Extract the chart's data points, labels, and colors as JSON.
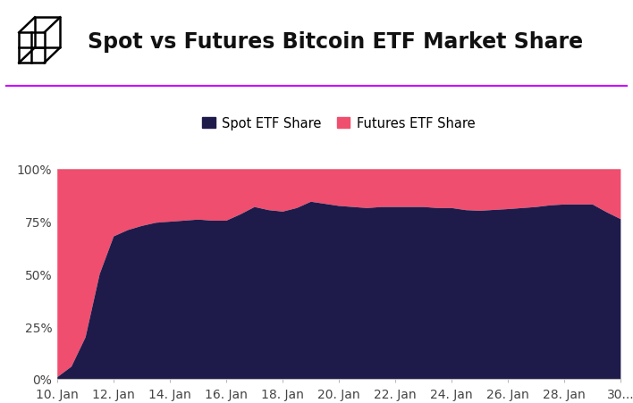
{
  "title": "Spot vs Futures Bitcoin ETF Market Share",
  "spot_color": "#1e1b4b",
  "futures_color": "#f04e6e",
  "background_color": "#ffffff",
  "title_color": "#111111",
  "accent_line_color": "#cc00ff",
  "ylim": [
    0,
    1
  ],
  "ytick_labels": [
    "0%",
    "25%",
    "50%",
    "75%",
    "100%"
  ],
  "ytick_values": [
    0,
    0.25,
    0.5,
    0.75,
    1.0
  ],
  "legend_spot_label": "Spot ETF Share",
  "legend_futures_label": "Futures ETF Share",
  "x_labels": [
    "10. Jan",
    "12. Jan",
    "14. Jan",
    "16. Jan",
    "18. Jan",
    "20. Jan",
    "22. Jan",
    "24. Jan",
    "26. Jan",
    "28. Jan",
    "30..."
  ],
  "x_positions": [
    0,
    2,
    4,
    6,
    8,
    10,
    12,
    14,
    16,
    18,
    20
  ],
  "title_fontsize": 17,
  "label_fontsize": 10.5,
  "tick_fontsize": 10
}
